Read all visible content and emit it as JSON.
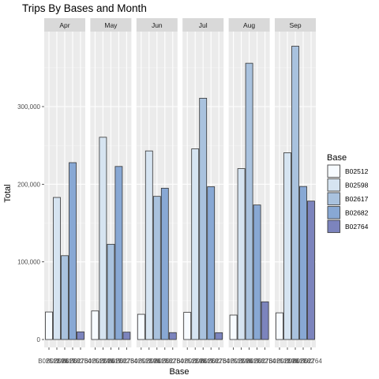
{
  "chart_data": {
    "type": "bar",
    "title": "Trips By Bases and Month",
    "xlabel": "Base",
    "ylabel": "Total",
    "ylim": [
      0,
      400000
    ],
    "yticks": [
      {
        "value": 0,
        "label": "0"
      },
      {
        "value": 100000,
        "label": "100,000"
      },
      {
        "value": 200000,
        "label": "200,000"
      },
      {
        "value": 300000,
        "label": "300,000"
      }
    ],
    "grid": true,
    "legend": {
      "title": "Base",
      "position": "right"
    },
    "categories": [
      "B02512",
      "B02598",
      "B02617",
      "B02682",
      "B02764"
    ],
    "colors": [
      "#f7fbff",
      "#d6e4f1",
      "#a9c2de",
      "#88a8d4",
      "#7c84bd"
    ],
    "facets": [
      {
        "label": "Apr",
        "values": [
          35500,
          183000,
          108000,
          227800,
          9900
        ]
      },
      {
        "label": "May",
        "values": [
          36800,
          260500,
          122700,
          222900,
          9500
        ]
      },
      {
        "label": "Jun",
        "values": [
          32500,
          242900,
          184400,
          194900,
          8900
        ]
      },
      {
        "label": "Jul",
        "values": [
          35000,
          245600,
          310800,
          196800,
          8800
        ]
      },
      {
        "label": "Aug",
        "values": [
          31500,
          220100,
          355800,
          173300,
          48600
        ]
      },
      {
        "label": "Sep",
        "values": [
          34400,
          240600,
          377800,
          197100,
          178300
        ]
      }
    ]
  }
}
